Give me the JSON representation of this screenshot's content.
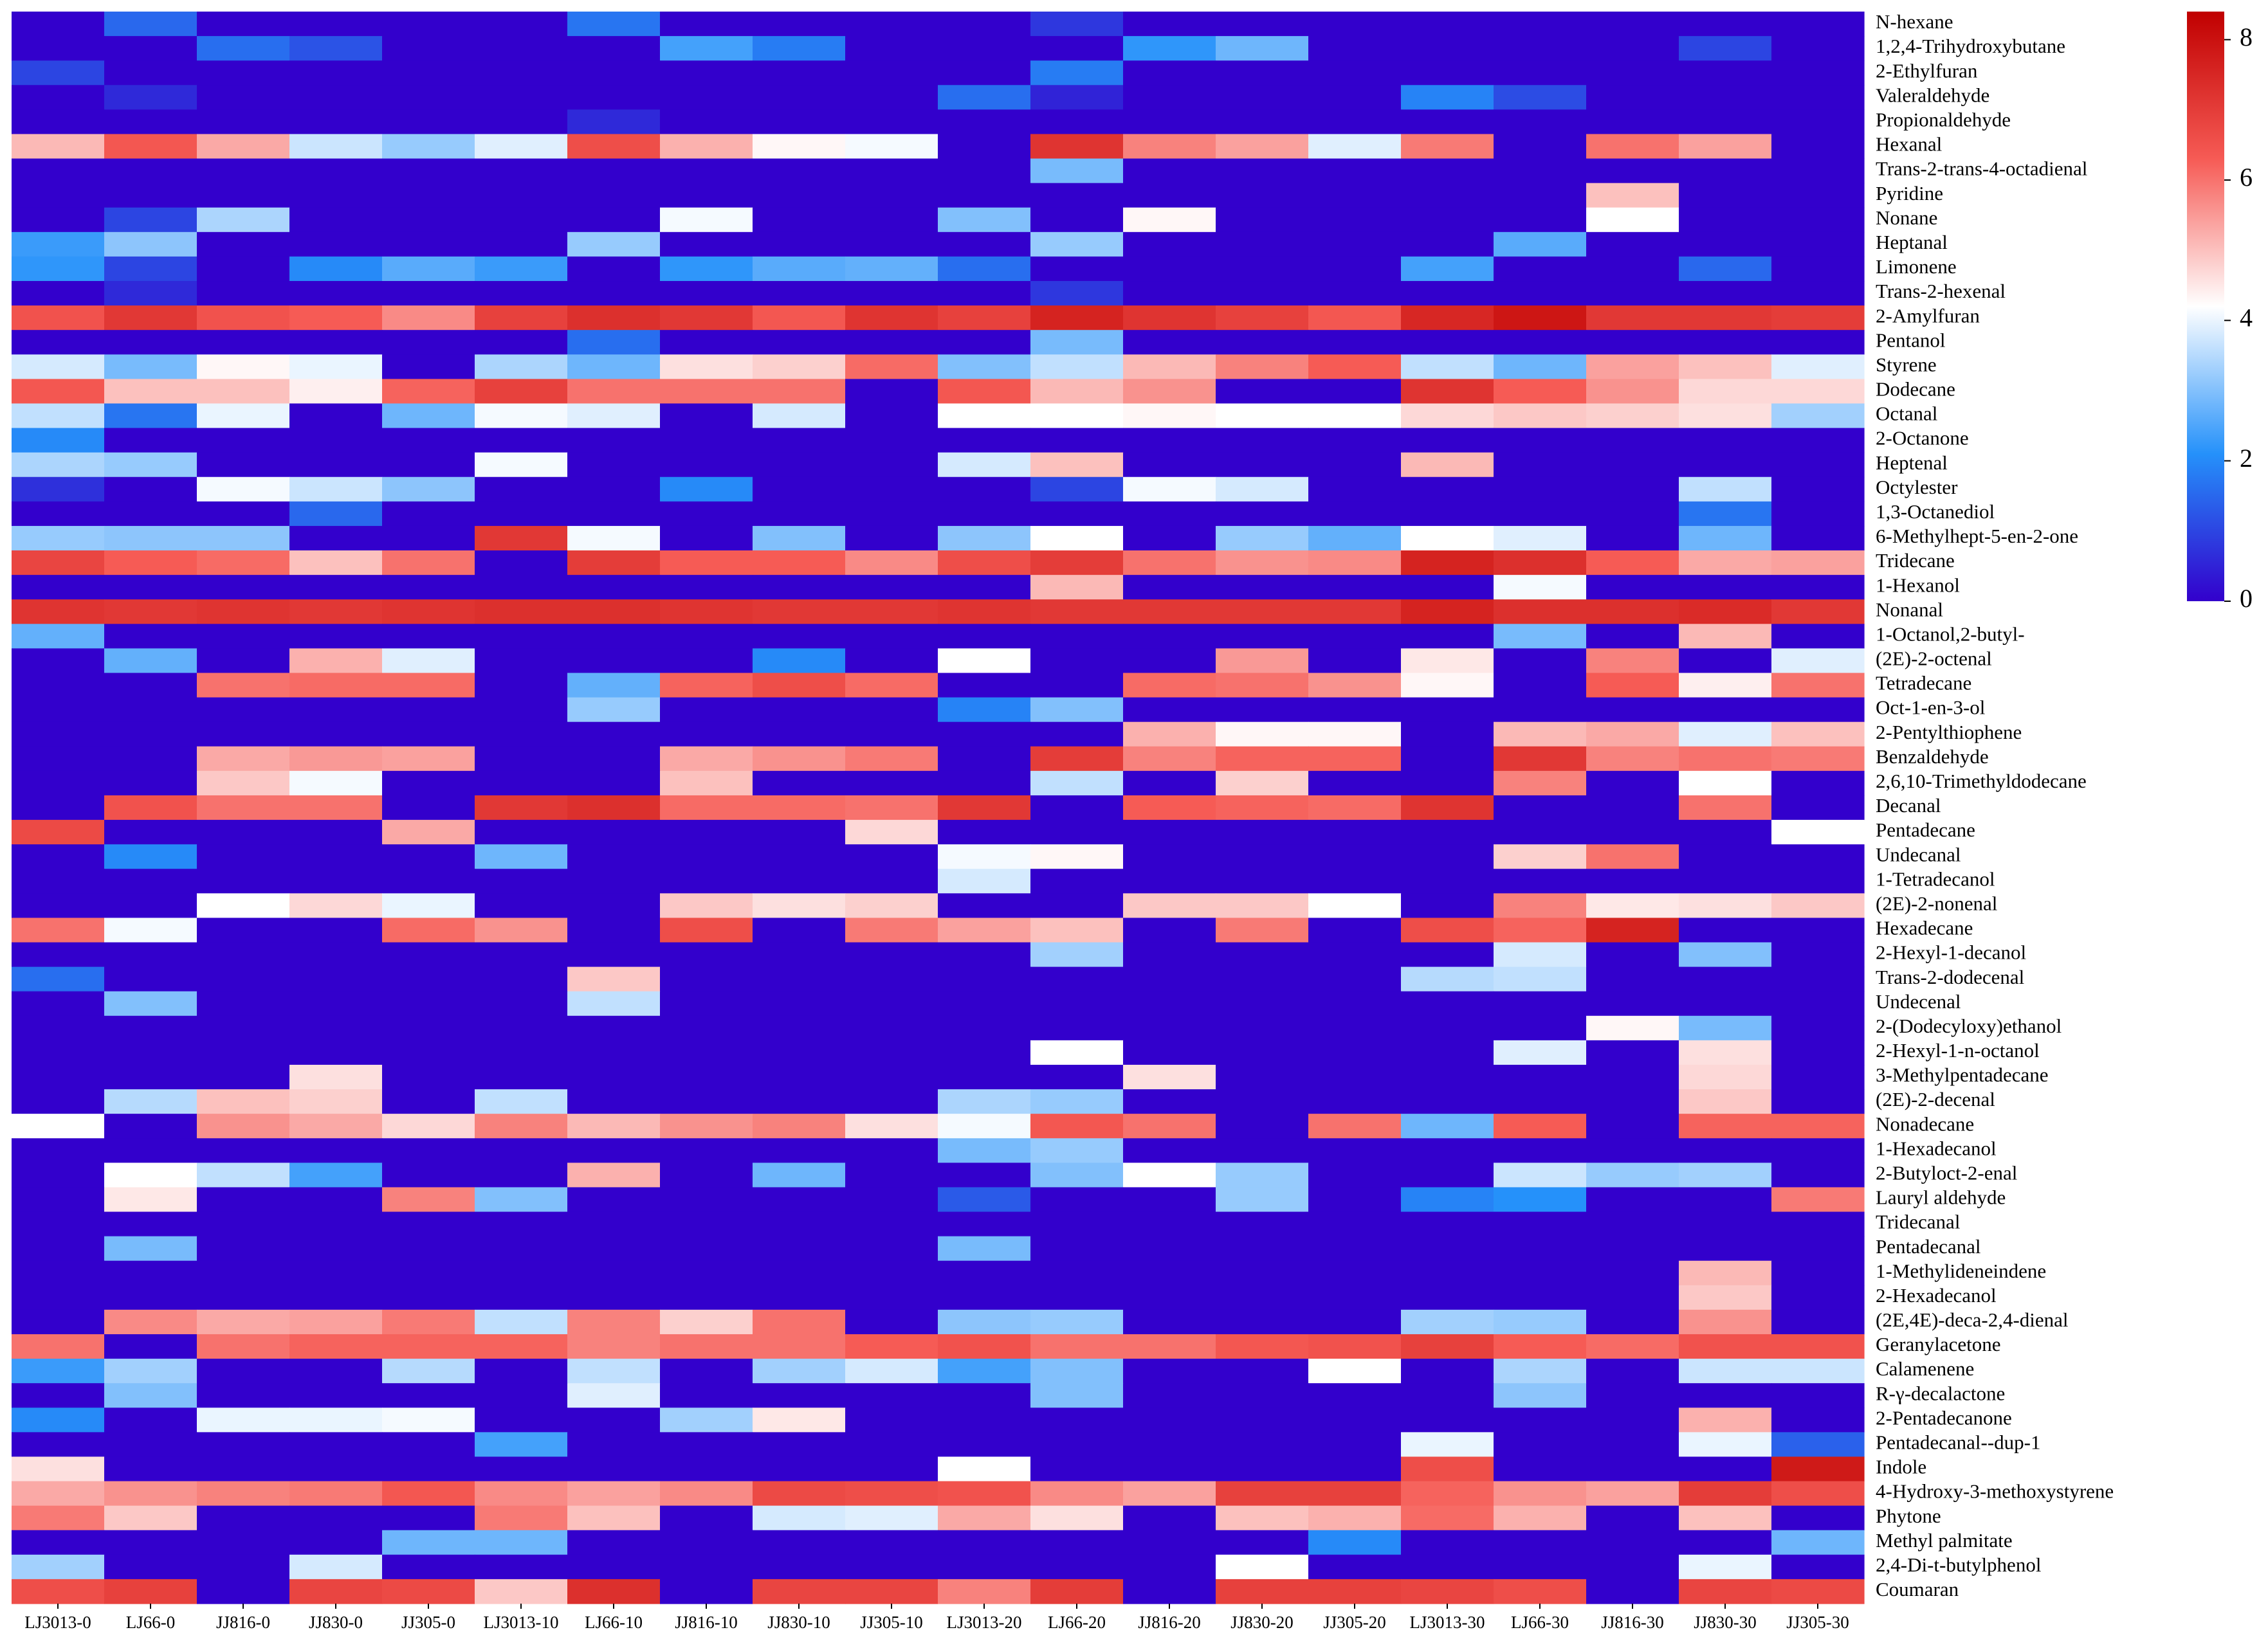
{
  "chart_data": {
    "type": "heatmap",
    "title": "",
    "xlabel": "",
    "ylabel": "",
    "columns": [
      "LJ3013-0",
      "LJ66-0",
      "JJ816-0",
      "JJ830-0",
      "JJ305-0",
      "LJ3013-10",
      "LJ66-10",
      "JJ816-10",
      "JJ830-10",
      "JJ305-10",
      "LJ3013-20",
      "LJ66-20",
      "JJ816-20",
      "JJ830-20",
      "JJ305-20",
      "LJ3013-30",
      "LJ66-30",
      "JJ816-30",
      "JJ830-30",
      "JJ305-30"
    ],
    "rows": [
      "N-hexane",
      "1,2,4-Trihydroxybutane",
      "2-Ethylfuran",
      "Valeraldehyde",
      "Propionaldehyde",
      "Hexanal",
      "Trans-2-trans-4-octadienal",
      "Pyridine",
      "Nonane",
      "Heptanal",
      "Limonene",
      "Trans-2-hexenal",
      "2-Amylfuran",
      "Pentanol",
      "Styrene",
      "Dodecane",
      "Octanal",
      "2-Octanone",
      "Heptenal",
      "Octylester",
      "1,3-Octanediol",
      "6-Methylhept-5-en-2-one",
      "Tridecane",
      "1-Hexanol",
      "Nonanal",
      "1-Octanol,2-butyl-",
      "(2E)-2-octenal",
      "Tetradecane",
      "Oct-1-en-3-ol",
      "2-Pentylthiophene",
      "Benzaldehyde",
      "2,6,10-Trimethyldodecane",
      "Decanal",
      "Pentadecane",
      "Undecanal",
      "1-Tetradecanol",
      "(2E)-2-nonenal",
      "Hexadecane",
      "2-Hexyl-1-decanol",
      "Trans-2-dodecenal",
      "Undecenal",
      "2-(Dodecyloxy)ethanol",
      "2-Hexyl-1-n-octanol",
      "3-Methylpentadecane",
      "(2E)-2-decenal",
      "Nonadecane",
      "1-Hexadecanol",
      "2-Butyloct-2-enal",
      "Lauryl aldehyde",
      "Tridecanal",
      "Pentadecanal",
      "1-Methylideneindene",
      "2-Hexadecanol",
      "(2E,4E)-deca-2,4-dienal",
      "Geranylacetone",
      "Calamenene",
      "R-γ-decalactone",
      "2-Pentadecanone",
      "Pentadecanal--dup-1",
      "Indole",
      "4-Hydroxy-3-methoxystyrene",
      "Phytone",
      "Methyl palmitate",
      "2,4-Di-t-butylphenol",
      "Coumaran"
    ],
    "values": [
      [
        0,
        1.5,
        0,
        0,
        0,
        0,
        1.7,
        0,
        0,
        0,
        0,
        0.8,
        0,
        0,
        0,
        0,
        0,
        0,
        0,
        0
      ],
      [
        0,
        0,
        1.6,
        1.2,
        0,
        0,
        0,
        2.4,
        1.8,
        0,
        0,
        0,
        2.2,
        2.8,
        0,
        0,
        0,
        0,
        1.0,
        0
      ],
      [
        1.0,
        0,
        0,
        0,
        0,
        0,
        0,
        0,
        0,
        0,
        0,
        1.8,
        0,
        0,
        0,
        0,
        0,
        0,
        0,
        0
      ],
      [
        0,
        0.6,
        0,
        0,
        0,
        0,
        0,
        0,
        0,
        0,
        1.6,
        0.5,
        0,
        0,
        0,
        1.9,
        1.1,
        0,
        0,
        0
      ],
      [
        0,
        0,
        0,
        0,
        0,
        0,
        0.6,
        0,
        0,
        0,
        0,
        0,
        0,
        0,
        0,
        0,
        0,
        0,
        0,
        0
      ],
      [
        5.1,
        6.4,
        5.3,
        3.7,
        3.2,
        3.9,
        6.6,
        5.2,
        4.3,
        4.1,
        0,
        7.2,
        5.8,
        5.4,
        3.9,
        5.9,
        0,
        6.0,
        5.4,
        0
      ],
      [
        0,
        0,
        0,
        0,
        0,
        0,
        0,
        0,
        0,
        0,
        0,
        2.9,
        0,
        0,
        0,
        0,
        0,
        0,
        0,
        0
      ],
      [
        0,
        0,
        0,
        0,
        0,
        0,
        0,
        0,
        0,
        0,
        0,
        0,
        0,
        0,
        0,
        0,
        0,
        5.0,
        0,
        0
      ],
      [
        0,
        1.0,
        3.4,
        0,
        0,
        0,
        0,
        4.1,
        0,
        0,
        3.0,
        0,
        4.3,
        0,
        0,
        0,
        0,
        4.2,
        0,
        0
      ],
      [
        2.3,
        3.1,
        0,
        0,
        0,
        0,
        3.2,
        0,
        0,
        0,
        0,
        3.2,
        0,
        0,
        0,
        0,
        2.6,
        0,
        0,
        0
      ],
      [
        2.2,
        1.0,
        0,
        2.0,
        2.6,
        2.3,
        0,
        2.2,
        2.6,
        2.7,
        1.6,
        0,
        0,
        0,
        0,
        2.4,
        0,
        0,
        1.5,
        0
      ],
      [
        0,
        0.6,
        0,
        0,
        0,
        0,
        0,
        0,
        0,
        0,
        0,
        0.8,
        0,
        0,
        0,
        0,
        0,
        0,
        0,
        0
      ],
      [
        6.5,
        7.1,
        6.5,
        6.3,
        5.7,
        6.9,
        7.3,
        7.1,
        6.4,
        7.2,
        6.9,
        7.6,
        7.2,
        6.9,
        6.4,
        7.5,
        7.9,
        7.1,
        7.1,
        7.0
      ],
      [
        0,
        0,
        0,
        0,
        0,
        0,
        1.6,
        0,
        0,
        0,
        0,
        2.9,
        0,
        0,
        0,
        0,
        0,
        0,
        0,
        0
      ],
      [
        3.8,
        2.9,
        4.3,
        4.0,
        0,
        3.4,
        2.8,
        4.6,
        4.8,
        6.1,
        3.0,
        3.6,
        5.1,
        5.8,
        6.3,
        3.6,
        2.8,
        5.4,
        5.0,
        3.9
      ],
      [
        6.4,
        5.0,
        5.0,
        4.4,
        6.2,
        6.9,
        6.0,
        6.0,
        6.0,
        0,
        6.4,
        5.1,
        5.6,
        0,
        0,
        7.2,
        6.3,
        5.6,
        4.7,
        4.7
      ],
      [
        3.6,
        1.7,
        4.0,
        0,
        2.8,
        4.1,
        3.9,
        0,
        3.8,
        0,
        4.2,
        4.2,
        4.3,
        4.2,
        4.2,
        4.7,
        4.9,
        4.8,
        4.6,
        3.3
      ],
      [
        2.0,
        0,
        0,
        0,
        0,
        0,
        0,
        0,
        0,
        0,
        0,
        0,
        0,
        0,
        0,
        0,
        0,
        0,
        0,
        0
      ],
      [
        3.4,
        3.2,
        0,
        0,
        0,
        4.1,
        0,
        0,
        0,
        0,
        3.8,
        5.0,
        0,
        0,
        0,
        5.1,
        0,
        0,
        0,
        0
      ],
      [
        0.7,
        0,
        4.1,
        3.7,
        3.1,
        0,
        0,
        2.0,
        0,
        0,
        0,
        1.0,
        4.1,
        3.8,
        0,
        0,
        0,
        0,
        3.6,
        0
      ],
      [
        0,
        0,
        0,
        1.5,
        0,
        0,
        0,
        0,
        0,
        0,
        0,
        0,
        0,
        0,
        0,
        0,
        0,
        0,
        1.7,
        0
      ],
      [
        3.2,
        3.1,
        3.1,
        0,
        0,
        7.1,
        4.1,
        0,
        3.0,
        0,
        3.1,
        4.2,
        0,
        3.2,
        2.7,
        4.2,
        3.9,
        0,
        2.8,
        0
      ],
      [
        6.8,
        6.3,
        6.1,
        5.0,
        6.0,
        0,
        7.0,
        6.3,
        6.3,
        5.7,
        6.6,
        7.0,
        6.0,
        5.6,
        5.7,
        7.6,
        7.3,
        6.3,
        5.3,
        5.4
      ],
      [
        0,
        0,
        0,
        0,
        0,
        0,
        0,
        0,
        0,
        0,
        0,
        5.1,
        0,
        0,
        0,
        0,
        4.1,
        0,
        0,
        0
      ],
      [
        7.2,
        7.1,
        7.2,
        7.1,
        7.2,
        7.3,
        7.3,
        7.2,
        7.1,
        7.1,
        7.2,
        7.1,
        7.1,
        7.1,
        7.1,
        7.6,
        7.3,
        7.3,
        7.4,
        7.1
      ],
      [
        2.7,
        0,
        0,
        0,
        0,
        0,
        0,
        0,
        0,
        0,
        0,
        0,
        0,
        0,
        0,
        0,
        2.9,
        0,
        5.1,
        0
      ],
      [
        0,
        2.7,
        0,
        5.2,
        3.9,
        0,
        0,
        0,
        2.0,
        0,
        4.2,
        0,
        0,
        5.5,
        0,
        4.5,
        0,
        5.8,
        0,
        3.9
      ],
      [
        0,
        0,
        6.0,
        6.1,
        6.1,
        0,
        2.7,
        6.2,
        6.6,
        6.1,
        0,
        0,
        6.1,
        6.0,
        5.6,
        4.3,
        0,
        6.3,
        4.4,
        6.0
      ],
      [
        0,
        0,
        0,
        0,
        0,
        0,
        3.2,
        0,
        0,
        0,
        1.9,
        3.0,
        0,
        0,
        0,
        0,
        0,
        0,
        0,
        0
      ],
      [
        0,
        0,
        0,
        0,
        0,
        0,
        0,
        0,
        0,
        0,
        0,
        0,
        5.2,
        4.3,
        4.3,
        0,
        5.1,
        5.3,
        3.9,
        5.0
      ],
      [
        0,
        0,
        5.3,
        5.5,
        5.4,
        0,
        0,
        5.3,
        5.6,
        5.9,
        0,
        7.0,
        5.8,
        6.2,
        6.2,
        0,
        7.1,
        5.8,
        6.0,
        5.9
      ],
      [
        0,
        0,
        4.9,
        4.1,
        0,
        0,
        0,
        5.0,
        0,
        0,
        0,
        3.6,
        0,
        4.8,
        0,
        0,
        5.8,
        0,
        4.2,
        0
      ],
      [
        0,
        6.5,
        6.0,
        6.0,
        0,
        7.1,
        7.3,
        6.1,
        6.1,
        6.0,
        7.1,
        0,
        6.3,
        6.2,
        6.1,
        7.2,
        0,
        0,
        6.0,
        0
      ],
      [
        6.7,
        0,
        0,
        0,
        5.3,
        0,
        0,
        0,
        0,
        4.7,
        0,
        0,
        0,
        0,
        0,
        0,
        0,
        0,
        0,
        4.2
      ],
      [
        0,
        2.0,
        0,
        0,
        0,
        2.8,
        0,
        0,
        0,
        0,
        4.1,
        4.3,
        0,
        0,
        0,
        0,
        4.8,
        6.0,
        0,
        0
      ],
      [
        0,
        0,
        0,
        0,
        0,
        0,
        0,
        0,
        0,
        0,
        3.8,
        0,
        0,
        0,
        0,
        0,
        0,
        0,
        0,
        0
      ],
      [
        0,
        0,
        4.2,
        4.7,
        4.0,
        0,
        0,
        4.9,
        4.6,
        4.8,
        0,
        0,
        4.9,
        4.9,
        4.2,
        0,
        5.8,
        4.5,
        4.6,
        4.9
      ],
      [
        6.0,
        4.1,
        0,
        0,
        6.1,
        5.6,
        0,
        6.6,
        0,
        5.9,
        5.4,
        5.0,
        0,
        5.9,
        0,
        6.6,
        6.2,
        7.6,
        0,
        0
      ],
      [
        0,
        0,
        0,
        0,
        0,
        0,
        0,
        0,
        0,
        0,
        0,
        3.3,
        0,
        0,
        0,
        0,
        3.8,
        0,
        3.0,
        0
      ],
      [
        1.6,
        0,
        0,
        0,
        0,
        0,
        4.9,
        0,
        0,
        0,
        0,
        0,
        0,
        0,
        0,
        3.5,
        3.6,
        0,
        0,
        0
      ],
      [
        0,
        3.0,
        0,
        0,
        0,
        0,
        3.6,
        0,
        0,
        0,
        0,
        0,
        0,
        0,
        0,
        0,
        0,
        0,
        0,
        0
      ],
      [
        0,
        0,
        0,
        0,
        0,
        0,
        0,
        0,
        0,
        0,
        0,
        0,
        0,
        0,
        0,
        0,
        0,
        4.3,
        2.9,
        0
      ],
      [
        0,
        0,
        0,
        0,
        0,
        0,
        0,
        0,
        0,
        0,
        0,
        4.2,
        0,
        0,
        0,
        0,
        3.9,
        0,
        4.6,
        0
      ],
      [
        0,
        0,
        0,
        4.6,
        0,
        0,
        0,
        0,
        0,
        0,
        0,
        0,
        4.6,
        0,
        0,
        0,
        0,
        0,
        4.7,
        0
      ],
      [
        0,
        3.5,
        5.0,
        4.8,
        0,
        3.6,
        0,
        0,
        0,
        0,
        3.4,
        3.2,
        0,
        0,
        0,
        0,
        0,
        0,
        4.9,
        0
      ],
      [
        4.2,
        0,
        5.6,
        5.3,
        4.7,
        5.8,
        5.1,
        5.6,
        5.8,
        4.6,
        4.1,
        6.4,
        6.0,
        0,
        6.0,
        2.8,
        6.3,
        0,
        6.2,
        6.2
      ],
      [
        0,
        0,
        0,
        0,
        0,
        0,
        0,
        0,
        0,
        0,
        2.9,
        3.2,
        0,
        0,
        0,
        0,
        0,
        0,
        0,
        0
      ],
      [
        0,
        4.2,
        3.6,
        2.4,
        0,
        0,
        5.2,
        0,
        2.8,
        0,
        0,
        3.0,
        4.2,
        3.2,
        0,
        0,
        3.7,
        3.2,
        3.3,
        0
      ],
      [
        0,
        4.5,
        0,
        0,
        5.8,
        3.0,
        0,
        0,
        0,
        0,
        1.3,
        0,
        0,
        3.2,
        0,
        1.9,
        2.1,
        0,
        0,
        5.9
      ],
      [
        0,
        0,
        0,
        0,
        0,
        0,
        0,
        0,
        0,
        0,
        0,
        0,
        0,
        0,
        0,
        0,
        0,
        0,
        0,
        0
      ],
      [
        0,
        2.9,
        0,
        0,
        0,
        0,
        0,
        0,
        0,
        0,
        2.9,
        0,
        0,
        0,
        0,
        0,
        0,
        0,
        0,
        0
      ],
      [
        0,
        0,
        0,
        0,
        0,
        0,
        0,
        0,
        0,
        0,
        0,
        0,
        0,
        0,
        0,
        0,
        0,
        0,
        5.1,
        0
      ],
      [
        0,
        0,
        0,
        0,
        0,
        0,
        0,
        0,
        0,
        0,
        0,
        0,
        0,
        0,
        0,
        0,
        0,
        0,
        4.9,
        0
      ],
      [
        0,
        5.7,
        5.3,
        5.4,
        5.9,
        3.6,
        5.8,
        4.8,
        6.0,
        0,
        3.1,
        3.2,
        0,
        0,
        0,
        3.3,
        3.2,
        0,
        5.6,
        0
      ],
      [
        6.0,
        0,
        6.0,
        6.2,
        6.2,
        6.2,
        5.8,
        6.0,
        6.0,
        6.3,
        6.5,
        6.0,
        6.0,
        6.4,
        6.5,
        6.9,
        6.3,
        6.1,
        6.5,
        6.5
      ],
      [
        2.3,
        3.3,
        0,
        0,
        3.5,
        0,
        3.6,
        0,
        3.3,
        3.8,
        2.4,
        3.0,
        0,
        0,
        4.2,
        0,
        3.4,
        0,
        3.7,
        3.7
      ],
      [
        0,
        3.0,
        0,
        0,
        0,
        0,
        3.9,
        0,
        0,
        0,
        0,
        3.0,
        0,
        0,
        0,
        0,
        3.1,
        0,
        0,
        0
      ],
      [
        2.0,
        0,
        4.0,
        4.0,
        4.1,
        0,
        0,
        3.3,
        4.5,
        0,
        0,
        0,
        0,
        0,
        0,
        0,
        0,
        0,
        5.2,
        0
      ],
      [
        0,
        0,
        0,
        0,
        0,
        2.4,
        0,
        0,
        0,
        0,
        0,
        0,
        0,
        0,
        0,
        4.0,
        0,
        0,
        4.0,
        1.4
      ],
      [
        4.6,
        0,
        0,
        0,
        0,
        0,
        0,
        0,
        0,
        0,
        4.2,
        0,
        0,
        0,
        0,
        6.6,
        0,
        0,
        0,
        7.8
      ],
      [
        5.3,
        5.6,
        5.8,
        5.9,
        6.4,
        5.7,
        5.4,
        5.7,
        6.7,
        6.6,
        6.5,
        5.7,
        5.4,
        6.9,
        6.9,
        6.2,
        5.6,
        5.4,
        7.0,
        6.6
      ],
      [
        5.9,
        4.9,
        0,
        0,
        0,
        5.9,
        5.0,
        0,
        3.8,
        3.9,
        5.3,
        4.6,
        0,
        5.0,
        5.2,
        6.1,
        5.2,
        0,
        5.0,
        0
      ],
      [
        0,
        0,
        0,
        0,
        2.8,
        2.8,
        0,
        0,
        0,
        0,
        0,
        0,
        0,
        0,
        2.0,
        0,
        0,
        0,
        0,
        2.8
      ],
      [
        3.3,
        0,
        0,
        3.8,
        0,
        0,
        0,
        0,
        0,
        0,
        0,
        0,
        0,
        4.2,
        0,
        0,
        0,
        0,
        4.0,
        0
      ],
      [
        6.6,
        6.9,
        0,
        6.8,
        6.7,
        4.9,
        7.3,
        0,
        6.8,
        6.8,
        5.8,
        7.0,
        0,
        6.9,
        6.9,
        6.8,
        6.6,
        0,
        6.8,
        6.7
      ]
    ],
    "colorbar": {
      "range": [
        0,
        8.4
      ],
      "ticks": [
        0,
        2,
        4,
        6,
        8
      ],
      "colors": [
        "#3300cc",
        "#2591fa",
        "#ffffff",
        "#f65b55",
        "#c00000"
      ]
    },
    "grid": false
  }
}
